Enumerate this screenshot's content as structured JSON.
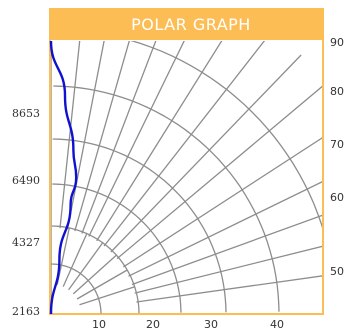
{
  "chart_data": {
    "type": "line",
    "title": "POLAR GRAPH",
    "xlabel": "",
    "ylabel": "",
    "x_ticks": [
      10,
      20,
      30,
      40
    ],
    "y_left_ticks": [
      2163,
      4327,
      6490,
      8653
    ],
    "y_right_ticks": [
      50,
      60,
      70,
      80,
      90
    ],
    "series": [
      {
        "values": [
          {
            "x": 0,
            "y": 0
          },
          {
            "x": 0.3,
            "y": 0.2
          },
          {
            "x": 0.7,
            "y": 0.4
          },
          {
            "x": 0.9,
            "y": 0.5
          },
          {
            "x": 0.8,
            "y": 0.6
          },
          {
            "x": 0.5,
            "y": 0.8
          },
          {
            "x": 0,
            "y": 1
          }
        ]
      }
    ],
    "colors": {
      "title_bar": "#fdbd55",
      "title_text": "#ffffff",
      "frame": "#fdbd55",
      "grid": "#8d8d8d",
      "series": "#1010d0",
      "tick_text": "#333333"
    }
  }
}
